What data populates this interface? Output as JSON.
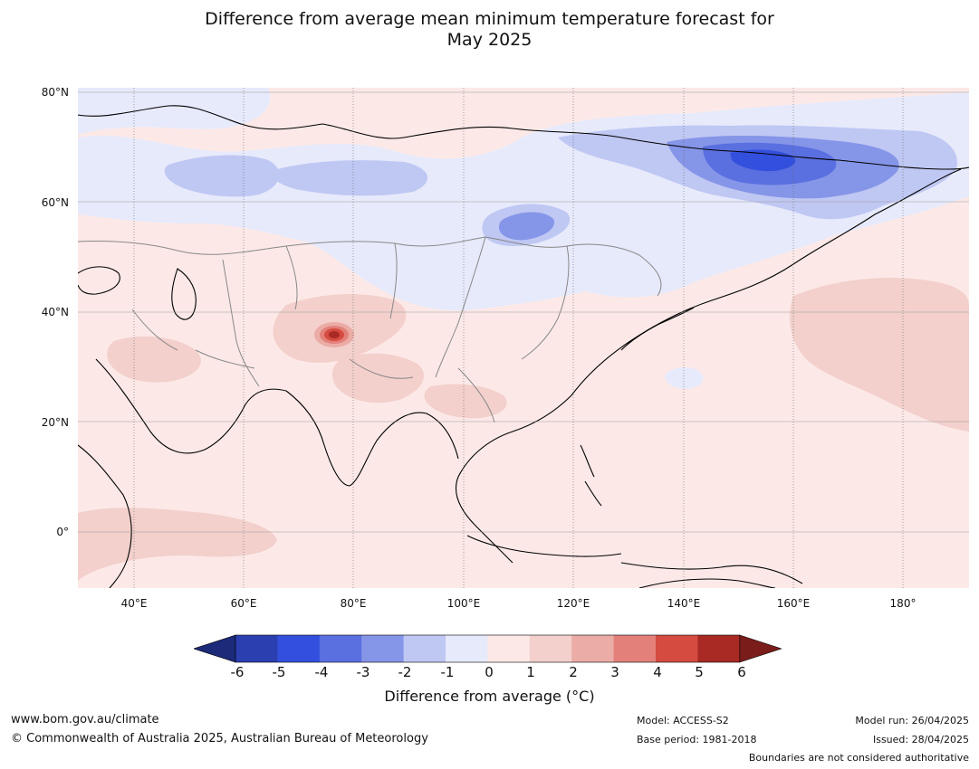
{
  "header": {
    "title_line1": "Difference from average mean minimum temperature forecast for",
    "title_line2": "May 2025"
  },
  "map": {
    "region": "Asia and western Pacific",
    "lat_labels": [
      "80°N",
      "60°N",
      "40°N",
      "20°N",
      "0°"
    ],
    "lon_labels": [
      "40°E",
      "60°E",
      "80°E",
      "100°E",
      "120°E",
      "140°E",
      "160°E",
      "180°"
    ],
    "background_color": "#fce9e7"
  },
  "legend": {
    "ticks": [
      "-6",
      "-5",
      "-4",
      "-3",
      "-2",
      "-1",
      "0",
      "1",
      "2",
      "3",
      "4",
      "5",
      "6"
    ],
    "colors": [
      "#1c2a7a",
      "#2b3fb0",
      "#334fdd",
      "#5a6fe0",
      "#8595e8",
      "#bfc7f3",
      "#e7eafb",
      "#fce9e7",
      "#f3d0cc",
      "#ebaca6",
      "#e3807a",
      "#d54b40",
      "#a92a24",
      "#7a1d1a"
    ],
    "title": "Difference from average (°C)"
  },
  "footer": {
    "website": "www.bom.gov.au/climate",
    "copyright": "© Commonwealth of Australia 2025, Australian Bureau of Meteorology",
    "model": "Model: ACCESS-S2",
    "base_period": "Base period: 1981-2018",
    "model_run": "Model run: 26/04/2025",
    "issued": "Issued: 28/04/2025",
    "disclaimer": "Boundaries are not considered authoritative"
  }
}
